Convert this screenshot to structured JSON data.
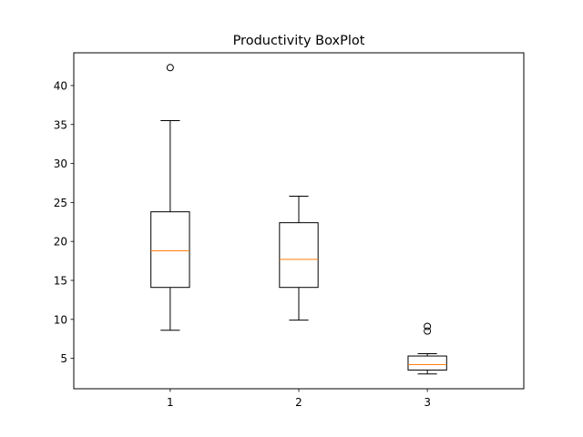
{
  "chart_data": {
    "type": "boxplot",
    "title": "Productivity BoxPlot",
    "xlabel": "",
    "ylabel": "",
    "categories": [
      "1",
      "2",
      "3"
    ],
    "ylim": [
      1.1,
      44.2
    ],
    "yticks": [
      5,
      10,
      15,
      20,
      25,
      30,
      35,
      40
    ],
    "grid": false,
    "boxes": [
      {
        "category": "1",
        "whisker_low": 8.6,
        "q1": 14.1,
        "median": 18.8,
        "q3": 23.8,
        "whisker_high": 35.5,
        "outliers": [
          42.3
        ]
      },
      {
        "category": "2",
        "whisker_low": 9.9,
        "q1": 14.1,
        "median": 17.7,
        "q3": 22.4,
        "whisker_high": 25.8,
        "outliers": []
      },
      {
        "category": "3",
        "whisker_low": 3.0,
        "q1": 3.5,
        "median": 4.2,
        "q3": 5.3,
        "whisker_high": 5.6,
        "outliers": [
          8.5,
          9.1
        ]
      }
    ],
    "colors": {
      "box": "#000000",
      "median": "#ff7f0e",
      "outlier": "#000000"
    }
  }
}
